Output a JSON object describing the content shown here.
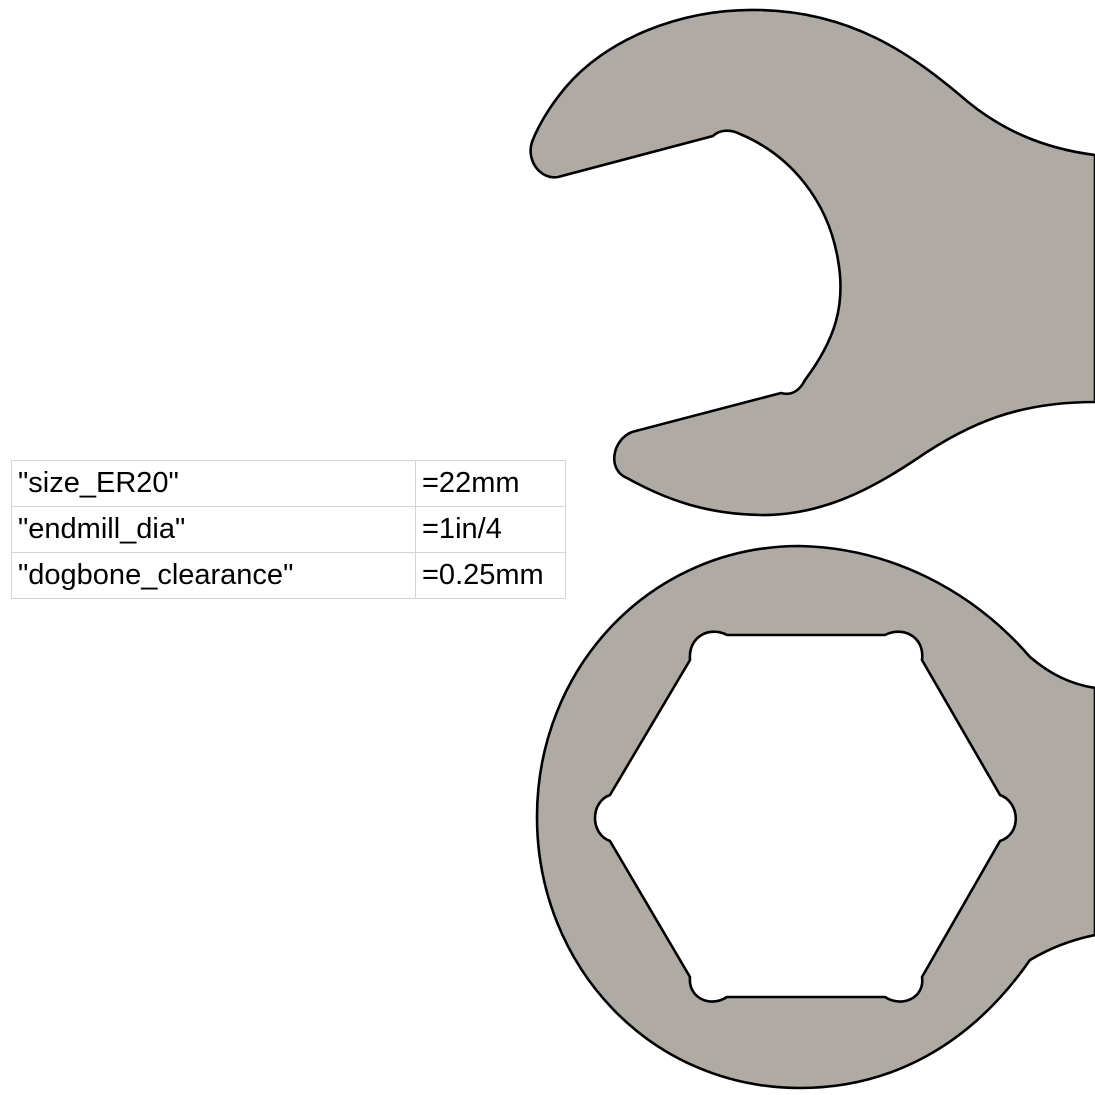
{
  "parameters": [
    {
      "name": "\"size_ER20\"",
      "value": "=22mm"
    },
    {
      "name": "\"endmill_dia\"",
      "value": "=1in/4"
    },
    {
      "name": "\"dogbone_clearance\"",
      "value": "=0.25mm"
    }
  ],
  "colors": {
    "part_fill": "#b0aaa5",
    "outline": "#000000",
    "grid_line": "#d4d4d4"
  }
}
